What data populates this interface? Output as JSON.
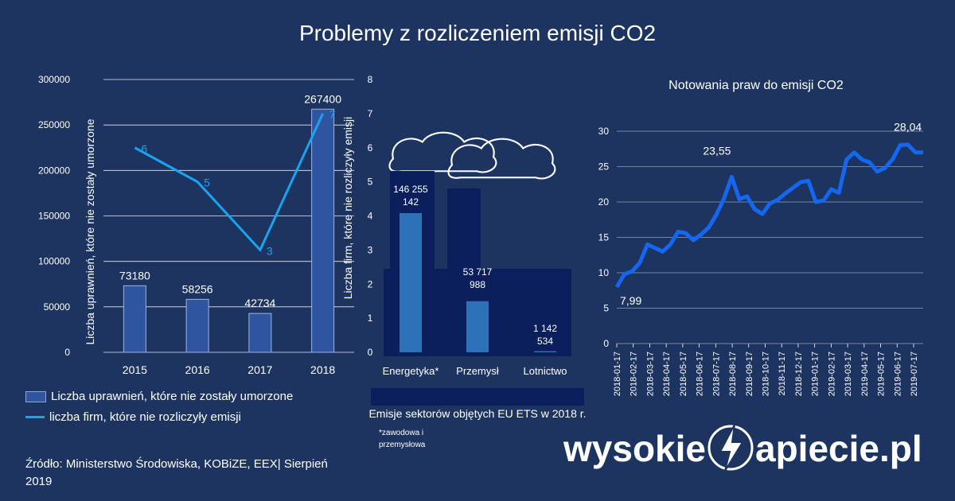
{
  "title": "Problemy z rozliczeniem emisji CO2",
  "chart_data": [
    {
      "type": "bar",
      "categories": [
        "2015",
        "2016",
        "2017",
        "2018"
      ],
      "series": [
        {
          "name": "Liczba uprawnień, które nie zostały umorzone",
          "type": "bar",
          "axis": "left",
          "values": [
            73180,
            58256,
            42734,
            267400
          ],
          "labels": [
            "73180",
            "58256",
            "42734",
            "267400"
          ]
        },
        {
          "name": "liczba firm, które nie rozliczyły emisji",
          "type": "line",
          "axis": "right",
          "values": [
            6,
            5,
            3,
            7
          ],
          "labels": [
            "6",
            "5",
            "3",
            "7"
          ]
        }
      ],
      "ylabel_left": "Liczba uprawnień, które nie zostały umorzone",
      "ylabel_right": "Liczba firm, które nie rozliczyły  emisji",
      "ylim_left": [
        0,
        300000
      ],
      "ylim_right": [
        0,
        8
      ],
      "yticks_left": [
        "0",
        "50000",
        "100000",
        "150000",
        "200000",
        "250000",
        "300000"
      ],
      "yticks_right": [
        "0",
        "1",
        "2",
        "3",
        "4",
        "5",
        "6",
        "7",
        "8"
      ],
      "grid": true,
      "legend_position": "bottom"
    },
    {
      "type": "bar",
      "title": "Emisje sektorów objętych EU ETS w 2018 r.",
      "categories": [
        "Energetyka*",
        "Przemysł",
        "Lotnictwo"
      ],
      "values": [
        146255142,
        53717988,
        1142534
      ],
      "value_labels": [
        "146 255 142",
        "53 717 988",
        "1 142 534"
      ],
      "note": "*zawodowa i przemysłowa"
    },
    {
      "type": "line",
      "title": "Notowania praw do emisji CO2",
      "x": [
        "2018-01-17",
        "2018-01-31",
        "2018-02-14",
        "2018-02-28",
        "2018-03-14",
        "2018-03-28",
        "2018-04-11",
        "2018-04-25",
        "2018-05-09",
        "2018-05-23",
        "2018-06-06",
        "2018-06-20",
        "2018-07-04",
        "2018-07-18",
        "2018-08-01",
        "2018-08-15",
        "2018-08-29",
        "2018-09-12",
        "2018-09-26",
        "2018-10-10",
        "2018-10-24",
        "2018-11-07",
        "2018-11-21",
        "2018-12-05",
        "2018-12-19",
        "2019-01-02",
        "2019-01-16",
        "2019-01-30",
        "2019-02-13",
        "2019-02-27",
        "2019-03-13",
        "2019-03-27",
        "2019-04-10",
        "2019-04-24",
        "2019-05-08",
        "2019-05-22",
        "2019-06-05",
        "2019-06-19",
        "2019-07-03",
        "2019-07-17",
        "2019-07-31"
      ],
      "values": [
        7.99,
        9.8,
        10.2,
        11.4,
        14.0,
        13.5,
        13.0,
        14.0,
        15.8,
        15.6,
        14.6,
        15.4,
        16.4,
        18.2,
        20.5,
        23.55,
        20.4,
        20.8,
        19.0,
        18.3,
        19.8,
        20.3,
        21.2,
        22.0,
        22.8,
        23.0,
        20.0,
        20.2,
        21.8,
        21.3,
        26.0,
        27.0,
        26.0,
        25.6,
        24.3,
        24.8,
        26.0,
        28.04,
        28.1,
        27.0,
        27.0
      ],
      "x_ticks": [
        "2018-01-17",
        "2018-02-17",
        "2018-03-17",
        "2018-04-17",
        "2018-05-17",
        "2018-06-17",
        "2018-07-17",
        "2018-08-17",
        "2018-09-17",
        "2018-10-17",
        "2018-11-17",
        "2018-12-17",
        "2019-01-17",
        "2019-02-17",
        "2019-03-17",
        "2019-04-17",
        "2019-05-17",
        "2019-06-17",
        "2019-07-17"
      ],
      "yticks": [
        "0",
        "5",
        "10",
        "15",
        "20",
        "25",
        "30"
      ],
      "ylim": [
        0,
        30
      ],
      "annotations": [
        {
          "label": "7,99",
          "index": 0
        },
        {
          "label": "23,55",
          "index": 15
        },
        {
          "label": "28,04",
          "index": 37
        }
      ],
      "line_color": "#1566f0",
      "grid": true
    }
  ],
  "source": "Źródło: Ministerstwo Środowiska, KOBiZE, EEX| Sierpień 2019",
  "brand": {
    "part1": "wysokie",
    "part2": "apiecie.pl"
  },
  "colors": {
    "background": "#1d3461",
    "bar": "#2f55a0",
    "line": "#1aa3ee",
    "price_line": "#1566f0",
    "factory": "#0b1f5c",
    "ets_bar": "#2d72b8"
  }
}
